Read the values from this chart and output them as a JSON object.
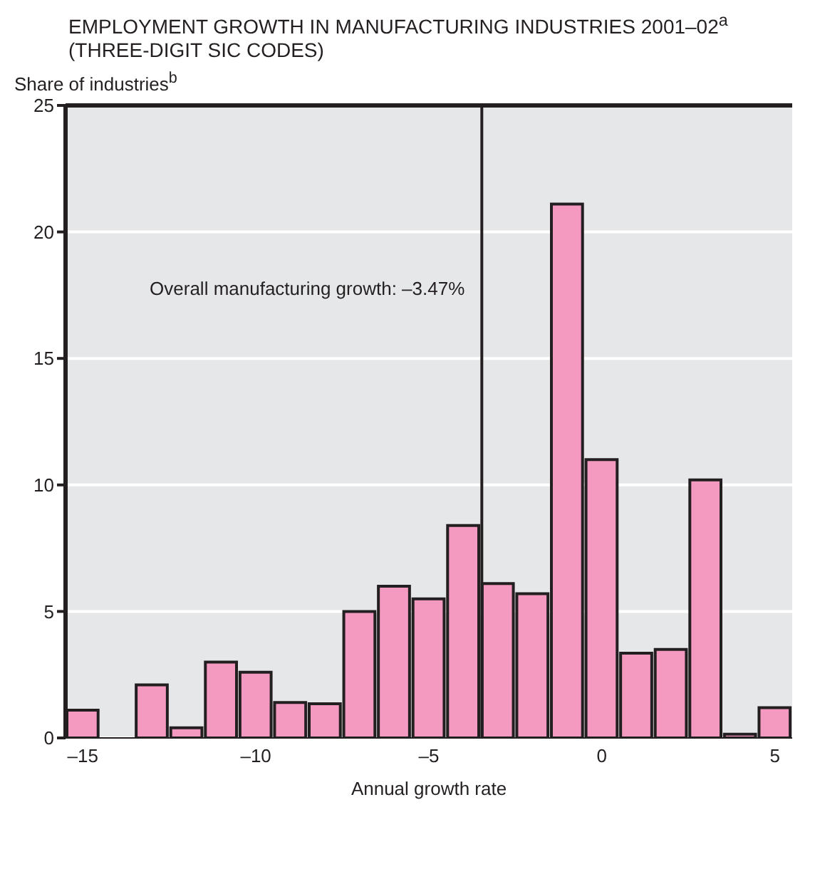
{
  "chart_data": {
    "type": "histogram",
    "title": "EMPLOYMENT GROWTH IN MANUFACTURING INDUSTRIES 2001–02$^{a}$ (THREE-DIGIT SIC CODES)",
    "xlabel": "Annual growth rate",
    "ylabel": "Share of industries$^{b}$",
    "bins": [
      -15.5,
      -14.5,
      -13.5,
      -12.5,
      -11.5,
      -10.5,
      -9.5,
      -8.5,
      -7.5,
      -6.5,
      -5.5,
      -4.5,
      -3.5,
      -2.5,
      -1.5,
      -0.5,
      0.5,
      1.5,
      2.5,
      3.5,
      4.5,
      5.5
    ],
    "values": [
      1.1,
      0,
      2.1,
      0.4,
      3.0,
      2.6,
      1.4,
      1.35,
      5.0,
      6.0,
      5.5,
      8.4,
      6.1,
      5.7,
      21.1,
      11.0,
      3.35,
      3.5,
      10.2,
      0.15,
      1.2
    ],
    "color": "#f49ac1",
    "xlim": [
      -15.5,
      5.5
    ],
    "xticks": [
      {
        "value": -15,
        "label": "–15"
      },
      {
        "value": -10,
        "label": "–10"
      },
      {
        "value": -5,
        "label": "–5"
      },
      0,
      5
    ],
    "ylim": [
      0,
      25
    ],
    "yticks": [
      0,
      5,
      10,
      15,
      20,
      25
    ],
    "grid": "y",
    "ref_lines": [
      {
        "axis": "x",
        "value": -3.47,
        "label": "Overall manufacturing growth: –3.47%",
        "color": "#231f20"
      }
    ]
  }
}
